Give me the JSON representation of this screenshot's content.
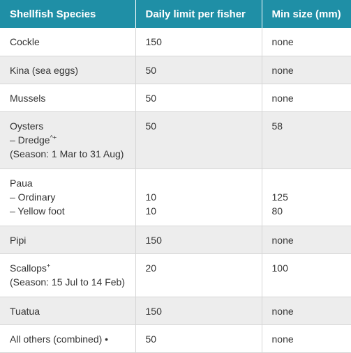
{
  "table": {
    "headers": [
      "Shellfish Species",
      "Daily limit per fisher",
      "Min size (mm)"
    ],
    "rows": [
      {
        "species": [
          "Cockle"
        ],
        "limit": [
          "150"
        ],
        "size": [
          "none"
        ]
      },
      {
        "species": [
          "Kina (sea eggs)"
        ],
        "limit": [
          "50"
        ],
        "size": [
          "none"
        ]
      },
      {
        "species": [
          "Mussels"
        ],
        "limit": [
          "50"
        ],
        "size": [
          "none"
        ]
      },
      {
        "species": [
          "Oysters",
          "– Dredge",
          "(Season: 1 Mar to 31 Aug)"
        ],
        "species_sup": "^+",
        "limit": [
          "50"
        ],
        "size": [
          "58"
        ]
      },
      {
        "species": [
          "Paua",
          "– Ordinary",
          "– Yellow foot"
        ],
        "limit": [
          "",
          "10",
          "10"
        ],
        "size": [
          "",
          "125",
          "80"
        ]
      },
      {
        "species": [
          "Pipi"
        ],
        "limit": [
          "150"
        ],
        "size": [
          "none"
        ]
      },
      {
        "species": [
          "Scallops",
          "(Season: 15 Jul to 14 Feb)"
        ],
        "species_sup": "+",
        "limit": [
          "20"
        ],
        "size": [
          "100"
        ]
      },
      {
        "species": [
          "Tuatua"
        ],
        "limit": [
          "150"
        ],
        "size": [
          "none"
        ]
      },
      {
        "species": [
          "All others (combined) •"
        ],
        "limit": [
          "50"
        ],
        "size": [
          "none"
        ]
      }
    ]
  }
}
